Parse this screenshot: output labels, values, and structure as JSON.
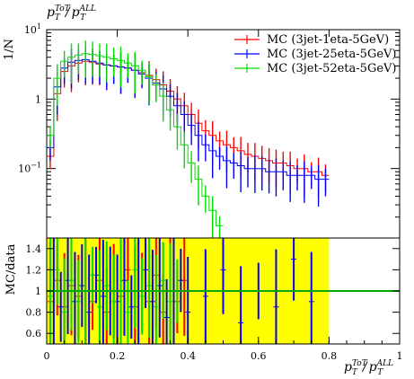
{
  "chart_data": [
    {
      "type": "line",
      "panel": "main",
      "title": "",
      "xlabel": "",
      "ylabel": "1/N",
      "xlim": [
        0,
        1
      ],
      "ylim": [
        0.01,
        10
      ],
      "log_y": true,
      "yticks": [
        {
          "value": 0.1,
          "base": "10",
          "exp": "−1"
        },
        {
          "value": 1,
          "label": "1"
        },
        {
          "value": 10,
          "base": "10",
          "exp": "1"
        }
      ],
      "legend_position": "top-right",
      "series": [
        {
          "name": "MC (3jet-1eta-5GeV)",
          "color": "#ff0000",
          "x": [
            0.01,
            0.03,
            0.05,
            0.07,
            0.09,
            0.11,
            0.13,
            0.15,
            0.17,
            0.19,
            0.21,
            0.23,
            0.25,
            0.27,
            0.29,
            0.31,
            0.33,
            0.35,
            0.37,
            0.39,
            0.41,
            0.43,
            0.45,
            0.47,
            0.49,
            0.51,
            0.53,
            0.55,
            0.57,
            0.59,
            0.61,
            0.63,
            0.65,
            0.67,
            0.69,
            0.71,
            0.73,
            0.75,
            0.77,
            0.79
          ],
          "y": [
            0.15,
            1.2,
            2.5,
            3.0,
            3.3,
            3.5,
            3.4,
            3.2,
            3.1,
            3.0,
            2.9,
            2.8,
            2.6,
            2.4,
            2.2,
            1.9,
            1.6,
            1.3,
            1.0,
            0.8,
            0.6,
            0.45,
            0.35,
            0.3,
            0.25,
            0.22,
            0.2,
            0.18,
            0.16,
            0.15,
            0.14,
            0.13,
            0.12,
            0.12,
            0.11,
            0.1,
            0.1,
            0.09,
            0.09,
            0.08
          ]
        },
        {
          "name": "MC (3jet-25eta-5GeV)",
          "color": "#0000ff",
          "x": [
            0.01,
            0.03,
            0.05,
            0.07,
            0.09,
            0.11,
            0.13,
            0.15,
            0.17,
            0.19,
            0.21,
            0.23,
            0.25,
            0.27,
            0.29,
            0.31,
            0.33,
            0.35,
            0.37,
            0.39,
            0.41,
            0.43,
            0.45,
            0.47,
            0.49,
            0.51,
            0.53,
            0.55,
            0.57,
            0.59,
            0.61,
            0.63,
            0.65,
            0.67,
            0.69,
            0.71,
            0.73,
            0.75,
            0.77,
            0.79
          ],
          "y": [
            0.2,
            1.5,
            2.8,
            3.4,
            3.6,
            3.7,
            3.5,
            3.3,
            3.1,
            3.0,
            2.9,
            2.8,
            2.6,
            2.3,
            2.0,
            1.7,
            1.4,
            1.1,
            0.8,
            0.6,
            0.42,
            0.3,
            0.22,
            0.18,
            0.15,
            0.13,
            0.12,
            0.11,
            0.1,
            0.1,
            0.1,
            0.09,
            0.09,
            0.09,
            0.08,
            0.08,
            0.08,
            0.08,
            0.07,
            0.07
          ]
        },
        {
          "name": "MC (3jet-52eta-5GeV)",
          "color": "#00dd00",
          "x": [
            0.01,
            0.03,
            0.05,
            0.07,
            0.09,
            0.11,
            0.13,
            0.15,
            0.17,
            0.19,
            0.21,
            0.23,
            0.25,
            0.27,
            0.29,
            0.31,
            0.33,
            0.35,
            0.37,
            0.39,
            0.41,
            0.43,
            0.45,
            0.47,
            0.49
          ],
          "y": [
            0.3,
            2.0,
            3.5,
            4.0,
            4.3,
            4.5,
            4.4,
            4.2,
            4.0,
            3.8,
            3.6,
            3.3,
            3.0,
            2.6,
            2.1,
            1.6,
            1.1,
            0.7,
            0.4,
            0.22,
            0.12,
            0.07,
            0.04,
            0.025,
            0.015
          ]
        }
      ]
    },
    {
      "type": "line",
      "panel": "ratio",
      "title": "",
      "xlabel": "p_T^ToT / p_T^ALL",
      "ylabel": "MC/data",
      "xlim": [
        0,
        1
      ],
      "ylim": [
        0.5,
        1.5
      ],
      "xticks": [
        0,
        0.2,
        0.4,
        0.6,
        0.8,
        1
      ],
      "yticks": [
        0.6,
        0.8,
        1,
        1.2,
        1.4
      ],
      "reference_line": 1,
      "reference_color": "#00aa00",
      "band_color": "#ffff00",
      "band_x_range": [
        0,
        0.8
      ],
      "series": [
        {
          "name": "MC (3jet-1eta-5GeV)",
          "color": "#ff0000",
          "x": [
            0.01,
            0.03,
            0.05,
            0.07,
            0.09,
            0.11,
            0.13,
            0.15,
            0.17,
            0.19,
            0.21,
            0.23,
            0.25,
            0.27,
            0.29,
            0.31,
            0.33,
            0.35,
            0.37,
            0.39
          ],
          "y": [
            0.9,
            1.1,
            0.85,
            1.05,
            0.95,
            1.0,
            0.9,
            1.1,
            0.8,
            1.0,
            0.95,
            1.2,
            0.85,
            1.0,
            0.9,
            1.15,
            0.8,
            1.0,
            0.9,
            1.1
          ]
        },
        {
          "name": "MC (3jet-25eta-5GeV)",
          "color": "#0000ff",
          "x": [
            0.02,
            0.04,
            0.06,
            0.08,
            0.1,
            0.12,
            0.14,
            0.16,
            0.18,
            0.2,
            0.22,
            0.24,
            0.26,
            0.28,
            0.3,
            0.32,
            0.34,
            0.36,
            0.38,
            0.4,
            0.45,
            0.5,
            0.55,
            0.6,
            0.65,
            0.7,
            0.75
          ],
          "y": [
            1.0,
            0.85,
            1.1,
            0.9,
            1.05,
            0.8,
            1.15,
            0.95,
            1.0,
            0.9,
            1.1,
            0.85,
            1.0,
            1.2,
            0.9,
            1.05,
            0.75,
            1.0,
            1.1,
            0.8,
            0.95,
            1.2,
            0.7,
            1.0,
            0.85,
            1.3,
            0.9
          ]
        },
        {
          "name": "MC (3jet-52eta-5GeV)",
          "color": "#00dd00",
          "x": [
            0.01,
            0.03,
            0.05,
            0.07,
            0.09,
            0.11,
            0.13,
            0.15,
            0.17,
            0.19,
            0.21,
            0.23,
            0.25,
            0.27,
            0.29,
            0.31,
            0.33,
            0.35,
            0.37
          ],
          "y": [
            0.95,
            1.2,
            0.8,
            1.1,
            0.9,
            1.0,
            1.15,
            0.85,
            1.05,
            0.9,
            1.0,
            0.8,
            1.2,
            0.95,
            1.05,
            0.85,
            1.1,
            0.9,
            1.0
          ]
        }
      ]
    }
  ]
}
